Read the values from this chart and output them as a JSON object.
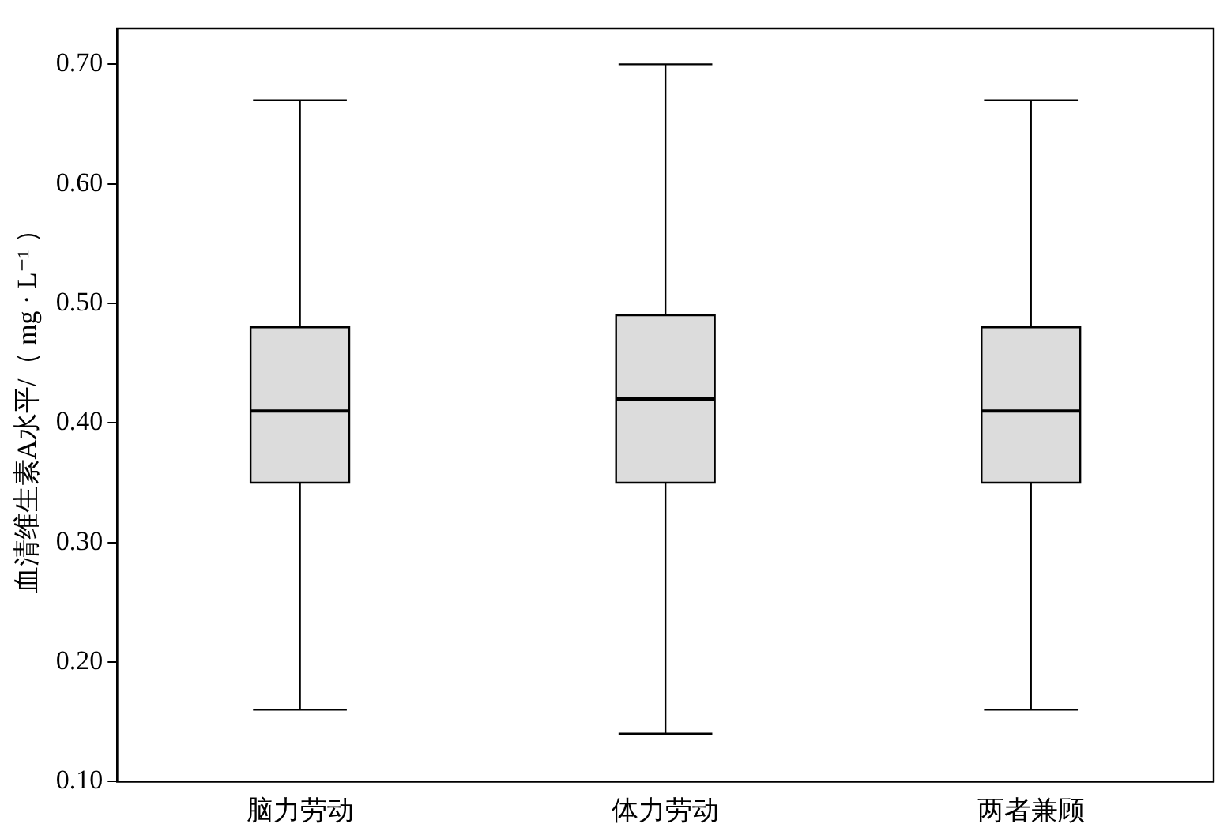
{
  "chart_data": {
    "type": "box",
    "ylabel": "血清维生素A水平/（ mg · L⁻¹ ）",
    "categories": [
      "脑力劳动",
      "体力劳动",
      "两者兼顾"
    ],
    "color": "#dcdcdc",
    "boxes": [
      {
        "low": 0.16,
        "q1": 0.35,
        "median": 0.41,
        "q3": 0.48,
        "high": 0.67
      },
      {
        "low": 0.14,
        "q1": 0.35,
        "median": 0.42,
        "q3": 0.49,
        "high": 0.7
      },
      {
        "low": 0.16,
        "q1": 0.35,
        "median": 0.41,
        "q3": 0.48,
        "high": 0.67
      }
    ],
    "ylim": [
      0.1,
      0.73
    ],
    "yticks": [
      {
        "value": 0.1,
        "label": "0.10"
      },
      {
        "value": 0.2,
        "label": "0.20"
      },
      {
        "value": 0.3,
        "label": "0.30"
      },
      {
        "value": 0.4,
        "label": "0.40"
      },
      {
        "value": 0.5,
        "label": "0.50"
      },
      {
        "value": 0.6,
        "label": "0.60"
      },
      {
        "value": 0.7,
        "label": "0.70"
      }
    ],
    "grid": false,
    "legend": false
  }
}
